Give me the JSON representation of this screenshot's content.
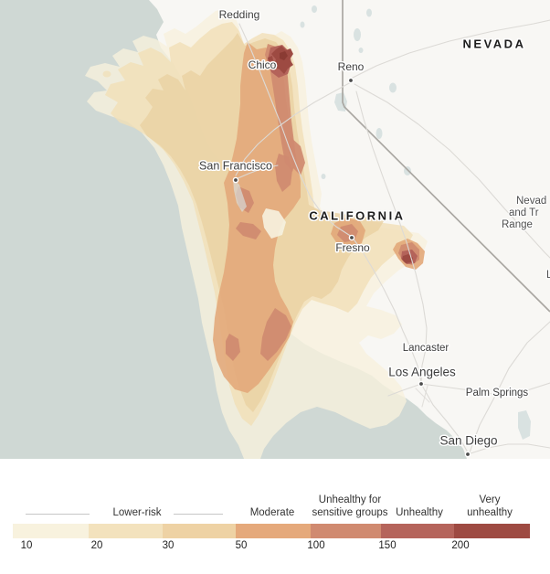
{
  "map": {
    "state_labels": [
      "NEVADA",
      "CALIFORNIA"
    ],
    "cities": [
      "Redding",
      "Chico",
      "Reno",
      "San Francisco",
      "Fresno",
      "Lancaster",
      "Los Angeles",
      "Palm Springs",
      "San Diego"
    ],
    "region_note_lines": [
      "Nevad",
      "and Tr",
      "Range"
    ],
    "edge_fragment": "L",
    "colors": {
      "ocean": "#cfd8d4",
      "land": "#f8f7f4",
      "lake": "#d9e2e1",
      "state_border": "#aaa7a2",
      "road": "#dcdad6",
      "smoke_levels": [
        "#f7f1dc",
        "#f1dfb6",
        "#e9d1a2",
        "#e2a779",
        "#cf8a70",
        "#b4635a",
        "#9d4a42"
      ],
      "fire_core": "#8a3b33"
    }
  },
  "legend": {
    "category_labels": [
      [
        "Lower-risk"
      ],
      [
        "Moderate"
      ],
      [
        "Unhealthy for",
        "sensitive groups"
      ],
      [
        "Unhealthy"
      ],
      [
        "Very",
        "unhealthy"
      ]
    ],
    "tick_labels": [
      "10",
      "20",
      "30",
      "50",
      "100",
      "150",
      "200"
    ],
    "segment_colors": [
      "#f8f2de",
      "#f3e2bd",
      "#eed2a4",
      "#e5a97b",
      "#d08a70",
      "#b5645b",
      "#9e4a42"
    ]
  }
}
